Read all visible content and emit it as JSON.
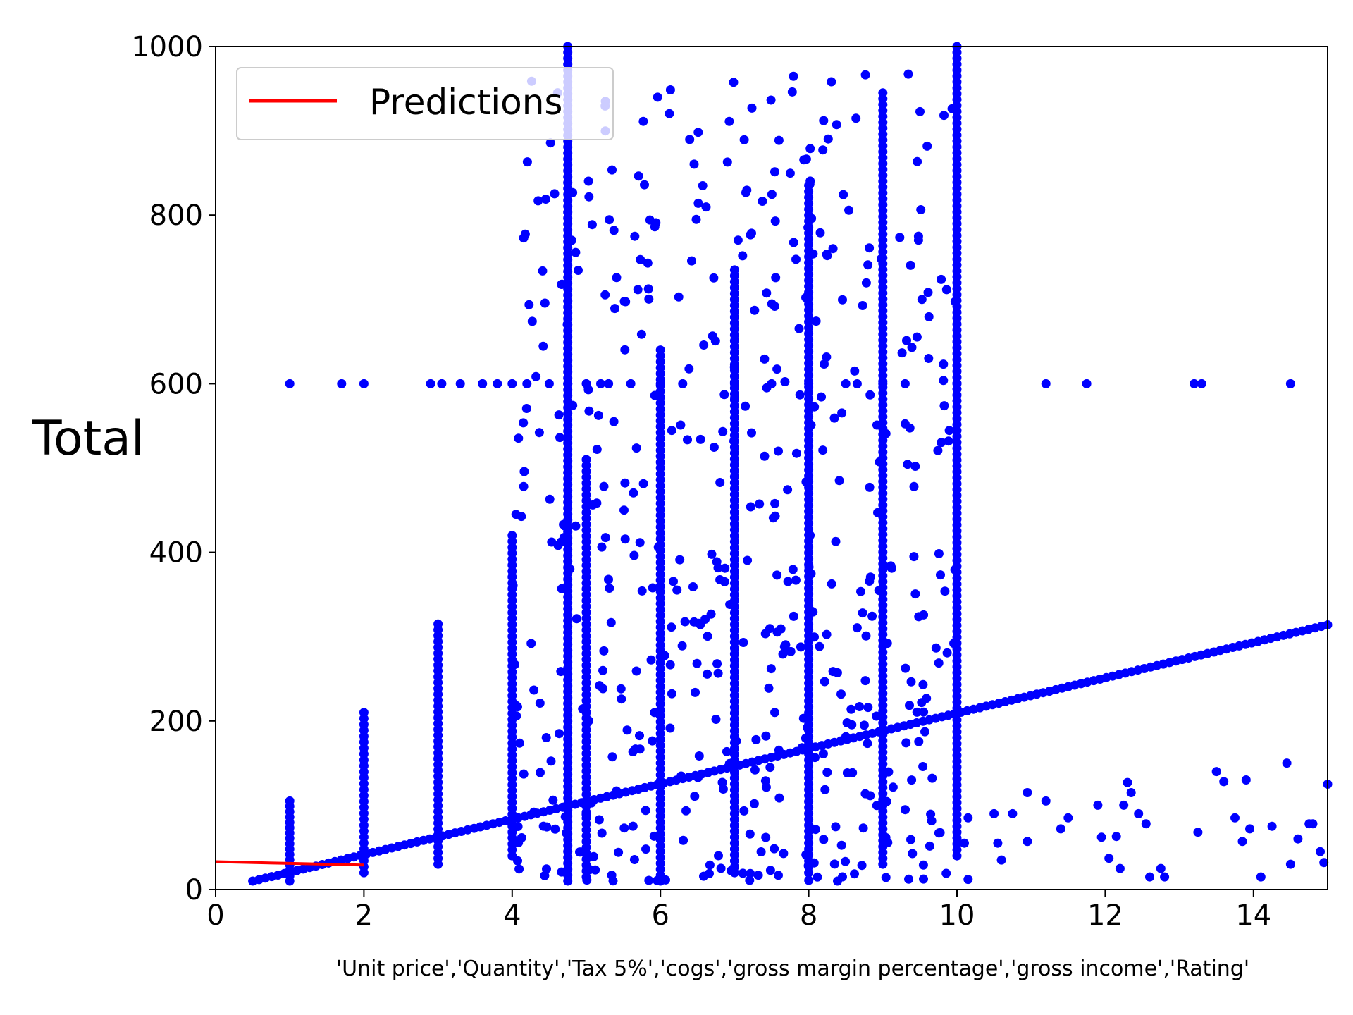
{
  "chart_data": {
    "type": "scatter",
    "xlabel": "'Unit price','Quantity','Tax 5%','cogs','gross margin percentage','gross income','Rating'",
    "ylabel": "Total",
    "xlim": [
      0,
      15
    ],
    "ylim": [
      0,
      1000
    ],
    "x_ticks": [
      "0",
      "2",
      "4",
      "6",
      "8",
      "10",
      "12",
      "14"
    ],
    "y_ticks": [
      "0",
      "200",
      "400",
      "600",
      "800",
      "1000"
    ],
    "grid": false,
    "legend": {
      "position": "top-left",
      "entries": [
        {
          "label": "Predictions",
          "color": "#ff0000",
          "type": "line"
        }
      ]
    },
    "colors": {
      "points": "#0000ff",
      "prediction": "#ff0000"
    },
    "predictions": [
      {
        "x": 0,
        "y": 33
      },
      {
        "x": 1,
        "y": 31
      },
      {
        "x": 2,
        "y": 29
      }
    ],
    "series": [
      {
        "description": "blue scatter points",
        "line": {
          "x_start": 0.5,
          "x_end": 15,
          "y_start": 10,
          "y_end": 314
        },
        "vertical_stacks": [
          {
            "x": 1,
            "y_min": 10,
            "y_max": 105
          },
          {
            "x": 2,
            "y_min": 20,
            "y_max": 210
          },
          {
            "x": 3,
            "y_min": 30,
            "y_max": 315
          },
          {
            "x": 4,
            "y_min": 40,
            "y_max": 420
          },
          {
            "x": 4.75,
            "y_min": 10,
            "y_max": 1000
          },
          {
            "x": 5,
            "y_min": 15,
            "y_max": 510
          },
          {
            "x": 6,
            "y_min": 10,
            "y_max": 640
          },
          {
            "x": 7,
            "y_min": 20,
            "y_max": 735
          },
          {
            "x": 8,
            "y_min": 20,
            "y_max": 835
          },
          {
            "x": 9,
            "y_min": 30,
            "y_max": 945
          },
          {
            "x": 10,
            "y_min": 40,
            "y_max": 1000
          }
        ],
        "horizontal_points_y600": [
          1,
          1.7,
          2,
          2.9,
          3.05,
          3.3,
          3.6,
          3.8,
          4,
          4.2,
          4.5,
          4.75,
          5,
          5.3,
          5.6,
          6,
          6.3,
          7,
          7.5,
          8,
          8.5,
          9,
          9.3,
          10,
          11.2,
          11.75,
          13.2,
          13.3,
          14.5
        ],
        "sparse_points": [
          [
            10.5,
            90
          ],
          [
            10.55,
            55
          ],
          [
            10.6,
            35
          ],
          [
            10.75,
            90
          ],
          [
            10.95,
            115
          ],
          [
            10.95,
            57
          ],
          [
            11.2,
            105
          ],
          [
            11.4,
            72
          ],
          [
            11.5,
            85
          ],
          [
            11.9,
            100
          ],
          [
            11.95,
            62
          ],
          [
            12.05,
            37
          ],
          [
            12.15,
            63
          ],
          [
            12.2,
            25
          ],
          [
            12.25,
            100
          ],
          [
            12.3,
            127
          ],
          [
            12.35,
            115
          ],
          [
            12.45,
            90
          ],
          [
            12.55,
            78
          ],
          [
            12.6,
            15
          ],
          [
            12.75,
            25
          ],
          [
            12.8,
            15
          ],
          [
            13.25,
            68
          ],
          [
            13.5,
            140
          ],
          [
            13.6,
            128
          ],
          [
            13.75,
            85
          ],
          [
            13.85,
            57
          ],
          [
            13.9,
            130
          ],
          [
            13.95,
            72
          ],
          [
            14.1,
            15
          ],
          [
            14.25,
            75
          ],
          [
            14.45,
            150
          ],
          [
            14.5,
            30
          ],
          [
            14.6,
            60
          ],
          [
            14.75,
            78
          ],
          [
            14.8,
            78
          ],
          [
            14.9,
            45
          ],
          [
            14.95,
            32
          ],
          [
            15,
            125
          ],
          [
            10.15,
            85
          ],
          [
            10.15,
            12
          ],
          [
            10.1,
            55
          ]
        ],
        "cloud": {
          "x_range": [
            4,
            10
          ],
          "y_range": [
            10,
            970
          ],
          "count": 520
        }
      }
    ]
  }
}
